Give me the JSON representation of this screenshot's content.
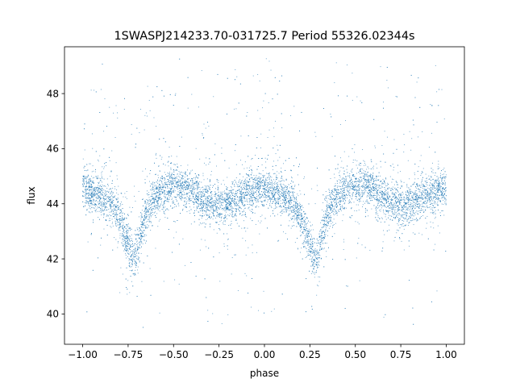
{
  "chart_data": {
    "type": "scatter",
    "title": "1SWASPJ214233.70-031725.7 Period 55326.02344s",
    "xlabel": "phase",
    "ylabel": "flux",
    "xlim": [
      -1.1,
      1.1
    ],
    "ylim": [
      38.9,
      49.7
    ],
    "xticks": [
      -1.0,
      -0.75,
      -0.5,
      -0.25,
      0.0,
      0.25,
      0.5,
      0.75,
      1.0
    ],
    "xtick_labels": [
      "−1.00",
      "−0.75",
      "−0.50",
      "−0.25",
      "0.00",
      "0.25",
      "0.50",
      "0.75",
      "1.00"
    ],
    "yticks": [
      40,
      42,
      44,
      46,
      48
    ],
    "ytick_labels": [
      "40",
      "42",
      "44",
      "46",
      "48"
    ],
    "grid": false,
    "legend": "none",
    "series": [
      {
        "marker_color": "#1f77b4",
        "x": [
          -1.0,
          -0.95,
          -0.9,
          -0.85,
          -0.8,
          -0.77,
          -0.75,
          -0.73,
          -0.72,
          -0.71,
          -0.7,
          -0.68,
          -0.65,
          -0.6,
          -0.55,
          -0.5,
          -0.45,
          -0.4,
          -0.35,
          -0.3,
          -0.25,
          -0.2,
          -0.15,
          -0.1,
          -0.05,
          0.0,
          0.05,
          0.1,
          0.15,
          0.2,
          0.23,
          0.25,
          0.27,
          0.28,
          0.29,
          0.3,
          0.32,
          0.35,
          0.4,
          0.45,
          0.5,
          0.55,
          0.6,
          0.65,
          0.7,
          0.75,
          0.8,
          0.85,
          0.9,
          0.95,
          1.0
        ],
        "y": [
          44.6,
          44.4,
          44.3,
          44.1,
          43.5,
          42.9,
          42.6,
          42.2,
          42.0,
          42.0,
          42.3,
          43.0,
          43.7,
          44.3,
          44.5,
          44.6,
          44.6,
          44.5,
          44.2,
          44.0,
          43.9,
          44.0,
          44.2,
          44.4,
          44.5,
          44.5,
          44.4,
          44.3,
          44.0,
          43.5,
          42.9,
          42.6,
          42.2,
          42.0,
          42.0,
          42.3,
          43.0,
          43.7,
          44.3,
          44.5,
          44.6,
          44.6,
          44.5,
          44.2,
          44.0,
          43.9,
          44.0,
          44.2,
          44.4,
          44.5,
          44.6
        ]
      }
    ]
  }
}
